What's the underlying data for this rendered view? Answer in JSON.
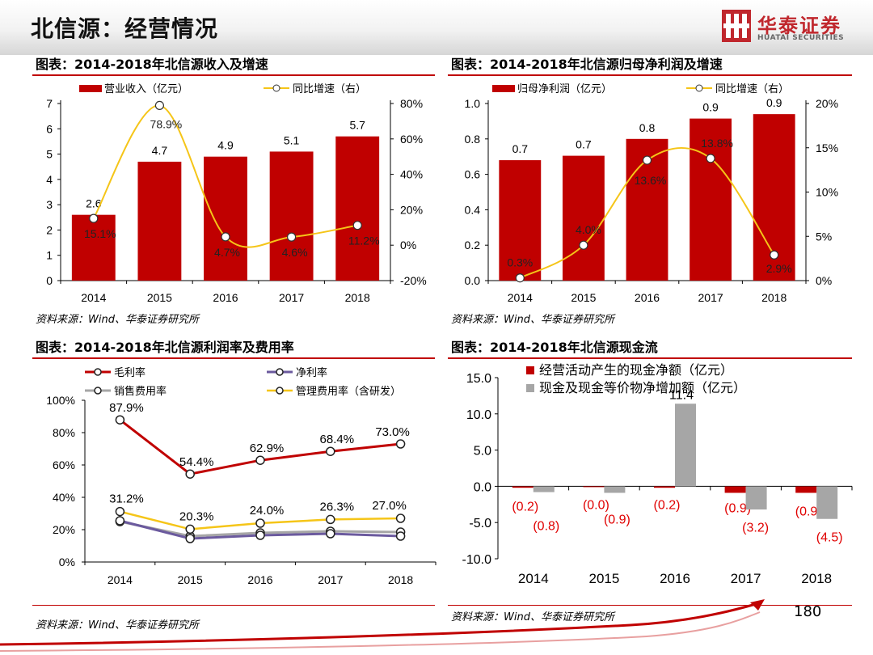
{
  "header": {
    "title": "北信源：经营情况"
  },
  "logo": {
    "name_cn": "华泰证券",
    "name_en": "HUATAI SECURITIES"
  },
  "page_number": "180",
  "colors": {
    "red": "#c00000",
    "yellow": "#f5c518",
    "purple": "#6b5a9e",
    "gray": "#a6a6a6",
    "accent": "#c0272d"
  },
  "panels": [
    {
      "title": "图表：2014-2018年北信源收入及增速",
      "source": "资料来源：Wind、华泰证券研究所"
    },
    {
      "title": "图表：2014-2018年北信源归母净利润及增速",
      "source": "资料来源：Wind、华泰证券研究所"
    },
    {
      "title": "图表：2014-2018年北信源利润率及费用率",
      "source": "资料来源：Wind、华泰证券研究所"
    },
    {
      "title": "图表：2014-2018年北信源现金流",
      "source": "资料来源：Wind、华泰证券研究所"
    }
  ],
  "chart_data": [
    {
      "type": "bar+line",
      "title": "图表：2014-2018年北信源收入及增速",
      "categories": [
        "2014",
        "2015",
        "2016",
        "2017",
        "2018"
      ],
      "bar": {
        "name": "营业收入（亿元）",
        "values": [
          2.6,
          4.7,
          4.9,
          5.1,
          5.7
        ],
        "labels": [
          "2.6",
          "4.7",
          "4.9",
          "5.1",
          "5.7"
        ]
      },
      "line": {
        "name": "同比增速（右）",
        "values": [
          15.1,
          78.9,
          4.7,
          4.6,
          11.2
        ],
        "labels": [
          "15.1%",
          "78.9%",
          "4.7%",
          "4.6%",
          "11.2%"
        ]
      },
      "ylim": [
        0,
        7
      ],
      "yticks": [
        "0",
        "1",
        "2",
        "3",
        "4",
        "5",
        "6",
        "7"
      ],
      "y2lim": [
        -20,
        80
      ],
      "y2ticks": [
        "-20%",
        "0%",
        "20%",
        "40%",
        "60%",
        "80%"
      ]
    },
    {
      "type": "bar+line",
      "title": "图表：2014-2018年北信源归母净利润及增速",
      "categories": [
        "2014",
        "2015",
        "2016",
        "2017",
        "2018"
      ],
      "bar": {
        "name": "归母净利润（亿元）",
        "values": [
          0.68,
          0.705,
          0.8,
          0.915,
          0.94
        ],
        "labels": [
          "0.7",
          "0.7",
          "0.8",
          "0.9",
          "0.9"
        ]
      },
      "line": {
        "name": "同比增速（右）",
        "values": [
          0.3,
          4.0,
          13.6,
          13.8,
          2.9
        ],
        "labels": [
          "0.3%",
          "4.0%",
          "13.6%",
          "13.8%",
          "2.9%"
        ]
      },
      "ylim": [
        0,
        1.0
      ],
      "yticks": [
        "0.0",
        "0.2",
        "0.4",
        "0.6",
        "0.8",
        "1.0"
      ],
      "y2lim": [
        0,
        20
      ],
      "y2ticks": [
        "0%",
        "5%",
        "10%",
        "15%",
        "20%"
      ]
    },
    {
      "type": "line",
      "title": "图表：2014-2018年北信源利润率及费用率",
      "categories": [
        "2014",
        "2015",
        "2016",
        "2017",
        "2018"
      ],
      "series": [
        {
          "name": "毛利率",
          "values": [
            87.9,
            54.4,
            62.9,
            68.4,
            73.0
          ],
          "labels": [
            "87.9%",
            "54.4%",
            "62.9%",
            "68.4%",
            "73.0%"
          ]
        },
        {
          "name": "净利率",
          "values": [
            25.5,
            14.5,
            16.5,
            17.5,
            16.0
          ],
          "labels": []
        },
        {
          "name": "销售费用率",
          "values": [
            25.0,
            16.0,
            18.0,
            19.0,
            18.5
          ],
          "labels": []
        },
        {
          "name": "管理费用率（含研发）",
          "values": [
            31.2,
            20.3,
            24.0,
            26.3,
            27.0
          ],
          "labels": [
            "31.2%",
            "20.3%",
            "24.0%",
            "26.3%",
            "27.0%"
          ]
        }
      ],
      "ylim": [
        0,
        100
      ],
      "yticks": [
        "0%",
        "20%",
        "40%",
        "60%",
        "80%",
        "100%"
      ]
    },
    {
      "type": "bar",
      "title": "图表：2014-2018年北信源现金流",
      "categories": [
        "2014",
        "2015",
        "2016",
        "2017",
        "2018"
      ],
      "series": [
        {
          "name": "经营活动产生的现金净额（亿元）",
          "values": [
            -0.2,
            0.0,
            -0.2,
            -0.9,
            -0.9
          ],
          "labels": [
            "(0.2)",
            "(0.0)",
            "(0.2)",
            "(0.9)",
            "(0.9)"
          ]
        },
        {
          "name": "现金及现金等价物净增加额（亿元）",
          "values": [
            -0.8,
            -0.9,
            11.4,
            -3.2,
            -4.5
          ],
          "labels": [
            "(0.8)",
            "(0.9)",
            "11.4",
            "(3.2)",
            "(4.5)"
          ]
        }
      ],
      "ylim": [
        -10,
        15
      ],
      "yticks": [
        "-10.0",
        "-5.0",
        "0.0",
        "5.0",
        "10.0",
        "15.0"
      ]
    }
  ]
}
